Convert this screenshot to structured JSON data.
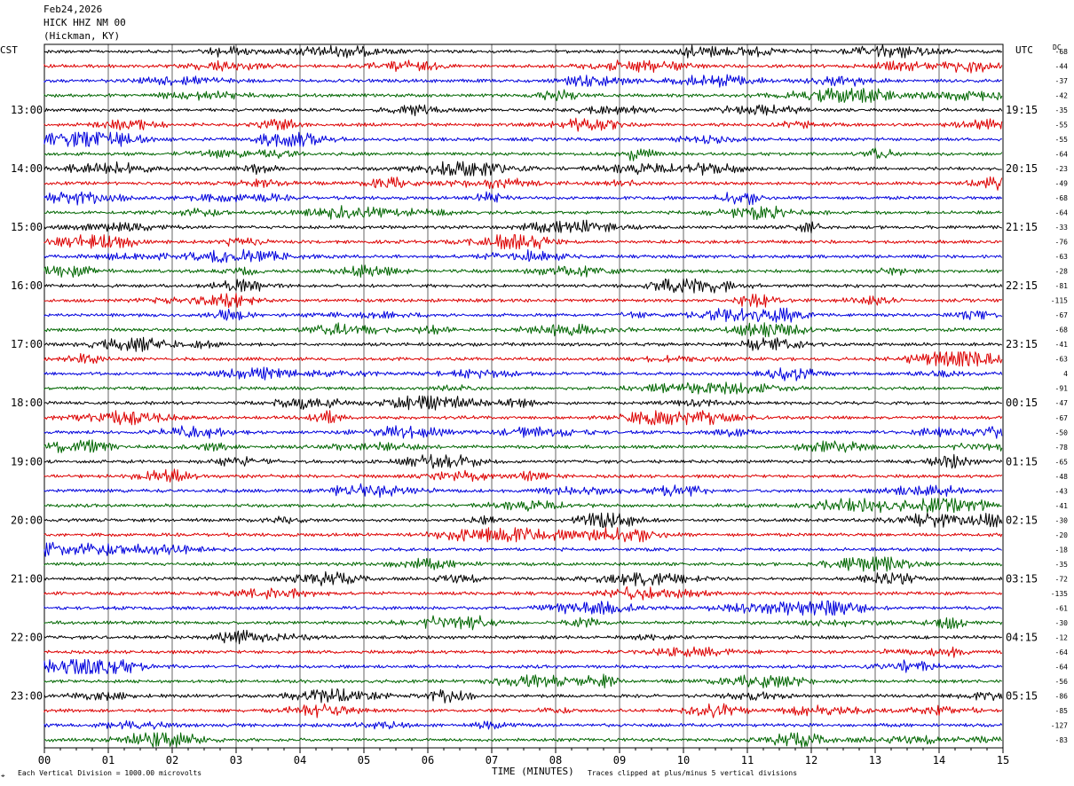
{
  "header": {
    "date": "Feb24,2026",
    "station": "HICK HHZ NM 00",
    "location": "(Hickman, KY)"
  },
  "left_label": "CST",
  "right_label": "UTC",
  "dc_label": "DC",
  "footer": {
    "scale_note": "Each Vertical Division = 1000.00 microvolts",
    "xaxis_title": "TIME (MINUTES)",
    "clip_note": "Traces clipped at plus/minus 5 vertical divisions"
  },
  "chart_data": {
    "type": "line",
    "title": "",
    "xlabel": "TIME (MINUTES)",
    "xlim": [
      0,
      15
    ],
    "x_ticks": [
      "00",
      "01",
      "02",
      "03",
      "04",
      "05",
      "06",
      "07",
      "08",
      "09",
      "10",
      "11",
      "12",
      "13",
      "14",
      "15"
    ],
    "grid": true,
    "trace_count": 48,
    "trace_colors": [
      "#000000",
      "#dd0000",
      "#0000dd",
      "#006600"
    ],
    "cst_hour_labels": [
      "13:00",
      "14:00",
      "15:00",
      "16:00",
      "17:00",
      "18:00",
      "19:00",
      "20:00",
      "21:00",
      "22:00",
      "23:00"
    ],
    "utc_hour_labels": [
      "19:15",
      "20:15",
      "21:15",
      "22:15",
      "23:15",
      "00:15",
      "01:15",
      "02:15",
      "03:15",
      "04:15",
      "05:15"
    ],
    "dc_offsets": [
      "-68",
      "-44",
      "-37",
      "-42",
      "-35",
      "-55",
      "-55",
      "-64",
      "-23",
      "-49",
      "-68",
      "-64",
      "-33",
      "-76",
      "-63",
      "-28",
      "-81",
      "-115",
      "-67",
      "-68",
      "-41",
      "-63",
      "4",
      "-91",
      "-47",
      "-67",
      "-50",
      "-78",
      "-65",
      "-48",
      "-43",
      "-41",
      "-30",
      "-20",
      "-18",
      "-35",
      "-72",
      "-135",
      "-61",
      "-30",
      "-12",
      "-64",
      "-64",
      "-56",
      "-86",
      "-85",
      "-127",
      "-83"
    ]
  }
}
